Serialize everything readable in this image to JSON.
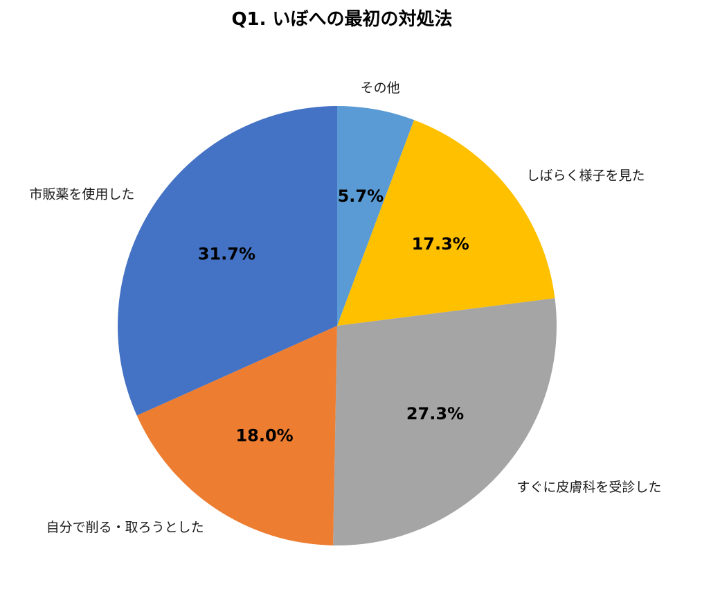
{
  "chart_data": {
    "type": "pie",
    "title": "Q1. いぼへの最初の対処法",
    "start_angle_deg": 0,
    "direction": "clockwise",
    "total": 100,
    "legend": "none",
    "label_style": "category labels outside, bold percent labels inside slices",
    "slices": [
      {
        "label": "その他",
        "value": 5.7,
        "pct_label": "5.7%",
        "color": "#5B9BD5"
      },
      {
        "label": "しばらく様子を見た",
        "value": 17.3,
        "pct_label": "17.3%",
        "color": "#FFC000"
      },
      {
        "label": "すぐに皮膚科を受診した",
        "value": 27.3,
        "pct_label": "27.3%",
        "color": "#A5A5A5"
      },
      {
        "label": "自分で削る・取ろうとした",
        "value": 18.0,
        "pct_label": "18.0%",
        "color": "#ED7D31"
      },
      {
        "label": "市販薬を使用した",
        "value": 31.7,
        "pct_label": "31.7%",
        "color": "#4472C4"
      }
    ]
  }
}
